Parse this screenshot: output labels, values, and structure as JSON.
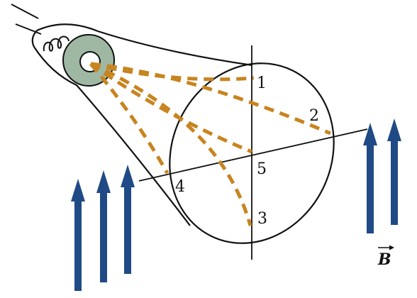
{
  "colors": {
    "beam": "#c8841f",
    "field_arrow": "#1f4a86",
    "cathode": "#9fb8a3",
    "outline": "#111111",
    "background": "#ffffff"
  },
  "labels": {
    "p1": "1",
    "p2": "2",
    "p3": "3",
    "p4": "4",
    "p5": "5",
    "field": "B"
  },
  "icons": {
    "filament": "filament-coil-icon",
    "cathode": "cathode-ring-icon",
    "field_arrow": "up-arrow-icon",
    "vector_mark": "vector-arrow-icon"
  }
}
